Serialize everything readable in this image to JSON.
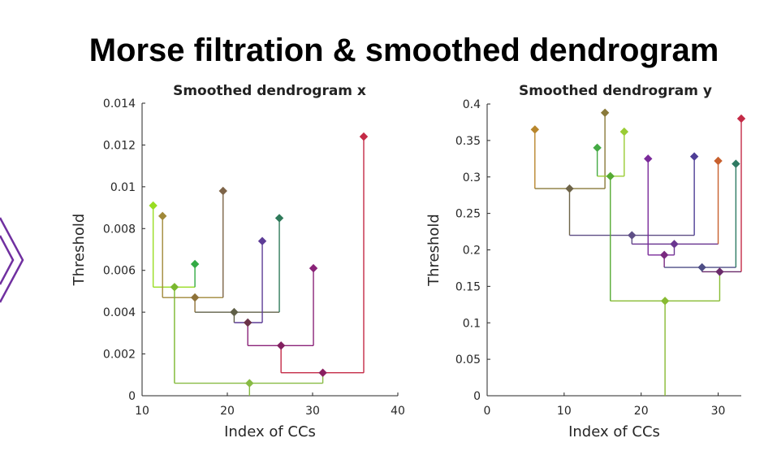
{
  "slide": {
    "title": "Morse filtration & smoothed dendrogram",
    "arrow_color": "#7030a0"
  },
  "chart_data": [
    {
      "type": "dendrogram",
      "title": "Smoothed dendrogram x",
      "xlabel": "Index of CCs",
      "ylabel": "Threshold",
      "xlim": [
        10,
        40
      ],
      "ylim": [
        0,
        0.014
      ],
      "xticks": [
        10,
        20,
        30,
        40
      ],
      "yticks": [
        0,
        0.002,
        0.004,
        0.006,
        0.008,
        0.01,
        0.012,
        0.014
      ],
      "ytick_labels": [
        "0",
        "0.002",
        "0.004",
        "0.006",
        "0.008",
        "0.01",
        "0.012",
        "0.014"
      ],
      "xtick_labels": [
        "10",
        "20",
        "30",
        "40"
      ],
      "merges": [
        {
          "x": 11.3,
          "y": 0.0091,
          "color": "#99dd22"
        },
        {
          "x": 12.4,
          "y": 0.0086,
          "color": "#a08838"
        },
        {
          "x": 16.2,
          "y": 0.0063,
          "color": "#33aa44"
        },
        {
          "x": 19.5,
          "y": 0.0098,
          "color": "#7d6448"
        },
        {
          "x": 24.1,
          "y": 0.0074,
          "color": "#5d3c96"
        },
        {
          "x": 26.1,
          "y": 0.0085,
          "color": "#2f7a5a"
        },
        {
          "x": 30.1,
          "y": 0.0061,
          "color": "#8a2278"
        },
        {
          "x": 36.0,
          "y": 0.0124,
          "color": "#c42a46"
        },
        {
          "x": 13.8,
          "y": 0.0052,
          "color": "#7ab82e",
          "children_x": [
            11.3,
            16.2
          ]
        },
        {
          "x": 16.2,
          "y": 0.0047,
          "color": "#8e7238",
          "children_x": [
            12.4,
            19.5
          ]
        },
        {
          "x": 20.8,
          "y": 0.004,
          "color": "#606048",
          "children_x": [
            16.2,
            26.1
          ]
        },
        {
          "x": 22.4,
          "y": 0.0035,
          "color": "#6a3248",
          "children_x": [
            20.8,
            24.1
          ]
        },
        {
          "x": 26.3,
          "y": 0.0024,
          "color": "#822060",
          "children_x": [
            22.4,
            30.1
          ]
        },
        {
          "x": 31.2,
          "y": 0.0011,
          "color": "#8a2060",
          "children_x": [
            26.3,
            36.0
          ]
        },
        {
          "x": 22.6,
          "y": 0.0006,
          "color": "#88bb44",
          "children_x": [
            13.8,
            31.2
          ]
        }
      ],
      "segments": [
        {
          "x1": 11.3,
          "y1": 0.0091,
          "x2": 11.3,
          "y2": 0.0052,
          "color": "#99dd22"
        },
        {
          "x1": 11.3,
          "y1": 0.0052,
          "x2": 16.2,
          "y2": 0.0052,
          "color": "#99dd22"
        },
        {
          "x1": 16.2,
          "y1": 0.0063,
          "x2": 16.2,
          "y2": 0.0052,
          "color": "#33aa44"
        },
        {
          "x1": 12.4,
          "y1": 0.0086,
          "x2": 12.4,
          "y2": 0.0047,
          "color": "#a08838"
        },
        {
          "x1": 12.4,
          "y1": 0.0047,
          "x2": 19.5,
          "y2": 0.0047,
          "color": "#a08838"
        },
        {
          "x1": 19.5,
          "y1": 0.0098,
          "x2": 19.5,
          "y2": 0.0047,
          "color": "#7d6448"
        },
        {
          "x1": 16.2,
          "y1": 0.0047,
          "x2": 16.2,
          "y2": 0.004,
          "color": "#8e7238"
        },
        {
          "x1": 16.2,
          "y1": 0.004,
          "x2": 26.1,
          "y2": 0.004,
          "color": "#606048"
        },
        {
          "x1": 26.1,
          "y1": 0.0085,
          "x2": 26.1,
          "y2": 0.004,
          "color": "#2f7a5a"
        },
        {
          "x1": 20.8,
          "y1": 0.004,
          "x2": 20.8,
          "y2": 0.0035,
          "color": "#606048"
        },
        {
          "x1": 20.8,
          "y1": 0.0035,
          "x2": 24.1,
          "y2": 0.0035,
          "color": "#5d3c96"
        },
        {
          "x1": 24.1,
          "y1": 0.0074,
          "x2": 24.1,
          "y2": 0.0035,
          "color": "#5d3c96"
        },
        {
          "x1": 22.4,
          "y1": 0.0035,
          "x2": 22.4,
          "y2": 0.0024,
          "color": "#8a2278"
        },
        {
          "x1": 22.4,
          "y1": 0.0024,
          "x2": 30.1,
          "y2": 0.0024,
          "color": "#8a2278"
        },
        {
          "x1": 30.1,
          "y1": 0.0061,
          "x2": 30.1,
          "y2": 0.0024,
          "color": "#8a2278"
        },
        {
          "x1": 26.3,
          "y1": 0.0024,
          "x2": 26.3,
          "y2": 0.0011,
          "color": "#c42a46"
        },
        {
          "x1": 26.3,
          "y1": 0.0011,
          "x2": 36.0,
          "y2": 0.0011,
          "color": "#c42a46"
        },
        {
          "x1": 36.0,
          "y1": 0.0124,
          "x2": 36.0,
          "y2": 0.0011,
          "color": "#c42a46"
        },
        {
          "x1": 13.8,
          "y1": 0.0052,
          "x2": 13.8,
          "y2": 0.0006,
          "color": "#7ab82e"
        },
        {
          "x1": 13.8,
          "y1": 0.0006,
          "x2": 31.2,
          "y2": 0.0006,
          "color": "#88bb44"
        },
        {
          "x1": 31.2,
          "y1": 0.0011,
          "x2": 31.2,
          "y2": 0.0006,
          "color": "#88bb44"
        },
        {
          "x1": 22.6,
          "y1": 0.0006,
          "x2": 22.6,
          "y2": 0.0,
          "color": "#88bb44"
        }
      ]
    },
    {
      "type": "dendrogram",
      "title": "Smoothed dendrogram y",
      "xlabel": "Index of CCs",
      "ylabel": "Threshold",
      "xlim": [
        0,
        33
      ],
      "ylim": [
        0,
        0.4
      ],
      "xticks": [
        0,
        10,
        20,
        30
      ],
      "yticks": [
        0,
        0.05,
        0.1,
        0.15,
        0.2,
        0.25,
        0.3,
        0.35,
        0.4
      ],
      "ytick_labels": [
        "0",
        "0.05",
        "0.1",
        "0.15",
        "0.2",
        "0.25",
        "0.3",
        "0.35",
        "0.4"
      ],
      "xtick_labels": [
        "0",
        "10",
        "20",
        "30"
      ],
      "merges": [
        {
          "x": 6.2,
          "y": 0.365,
          "color": "#b8862c"
        },
        {
          "x": 14.3,
          "y": 0.34,
          "color": "#44aa44"
        },
        {
          "x": 15.3,
          "y": 0.388,
          "color": "#8a7a3a"
        },
        {
          "x": 17.8,
          "y": 0.362,
          "color": "#99cc33"
        },
        {
          "x": 20.9,
          "y": 0.325,
          "color": "#7a2a9a"
        },
        {
          "x": 26.9,
          "y": 0.328,
          "color": "#4e3e96"
        },
        {
          "x": 30.0,
          "y": 0.322,
          "color": "#c8602e"
        },
        {
          "x": 32.3,
          "y": 0.318,
          "color": "#2e7a62"
        },
        {
          "x": 33.0,
          "y": 0.38,
          "color": "#c42a46"
        },
        {
          "x": 16.0,
          "y": 0.301,
          "color": "#55aa33",
          "children_x": [
            14.3,
            17.8
          ]
        },
        {
          "x": 10.7,
          "y": 0.284,
          "color": "#6e6448",
          "children_x": [
            6.2,
            15.3
          ]
        },
        {
          "x": 18.8,
          "y": 0.22,
          "color": "#5e4e86",
          "children_x": [
            10.7,
            26.9
          ]
        },
        {
          "x": 24.3,
          "y": 0.208,
          "color": "#6a3690",
          "children_x": [
            18.8,
            30.0
          ]
        },
        {
          "x": 23.0,
          "y": 0.193,
          "color": "#7a2a80",
          "children_x": [
            20.9,
            24.3
          ]
        },
        {
          "x": 27.9,
          "y": 0.176,
          "color": "#4e4e86",
          "children_x": [
            23.0,
            32.3
          ]
        },
        {
          "x": 30.2,
          "y": 0.17,
          "color": "#6a2a6a",
          "children_x": [
            27.9,
            33.0
          ]
        },
        {
          "x": 23.1,
          "y": 0.13,
          "color": "#88bb33",
          "children_x": [
            16.0,
            30.2
          ]
        }
      ],
      "segments": [
        {
          "x1": 6.2,
          "y1": 0.365,
          "x2": 6.2,
          "y2": 0.284,
          "color": "#b8862c"
        },
        {
          "x1": 6.2,
          "y1": 0.284,
          "x2": 15.3,
          "y2": 0.284,
          "color": "#8a7a3a"
        },
        {
          "x1": 15.3,
          "y1": 0.388,
          "x2": 15.3,
          "y2": 0.284,
          "color": "#8a7a3a"
        },
        {
          "x1": 14.3,
          "y1": 0.34,
          "x2": 14.3,
          "y2": 0.301,
          "color": "#44aa44"
        },
        {
          "x1": 14.3,
          "y1": 0.301,
          "x2": 17.8,
          "y2": 0.301,
          "color": "#99cc33"
        },
        {
          "x1": 17.8,
          "y1": 0.362,
          "x2": 17.8,
          "y2": 0.301,
          "color": "#99cc33"
        },
        {
          "x1": 10.7,
          "y1": 0.284,
          "x2": 10.7,
          "y2": 0.22,
          "color": "#6e6448"
        },
        {
          "x1": 10.7,
          "y1": 0.22,
          "x2": 26.9,
          "y2": 0.22,
          "color": "#5e4e86"
        },
        {
          "x1": 26.9,
          "y1": 0.328,
          "x2": 26.9,
          "y2": 0.22,
          "color": "#4e3e96"
        },
        {
          "x1": 18.8,
          "y1": 0.22,
          "x2": 18.8,
          "y2": 0.208,
          "color": "#5e4e86"
        },
        {
          "x1": 18.8,
          "y1": 0.208,
          "x2": 30.0,
          "y2": 0.208,
          "color": "#6a3690"
        },
        {
          "x1": 30.0,
          "y1": 0.322,
          "x2": 30.0,
          "y2": 0.208,
          "color": "#c8602e"
        },
        {
          "x1": 20.9,
          "y1": 0.325,
          "x2": 20.9,
          "y2": 0.193,
          "color": "#7a2a9a"
        },
        {
          "x1": 20.9,
          "y1": 0.193,
          "x2": 24.3,
          "y2": 0.193,
          "color": "#7a2a9a"
        },
        {
          "x1": 24.3,
          "y1": 0.208,
          "x2": 24.3,
          "y2": 0.193,
          "color": "#6a3690"
        },
        {
          "x1": 23.0,
          "y1": 0.193,
          "x2": 23.0,
          "y2": 0.176,
          "color": "#7a2a80"
        },
        {
          "x1": 23.0,
          "y1": 0.176,
          "x2": 32.3,
          "y2": 0.176,
          "color": "#4e4e86"
        },
        {
          "x1": 32.3,
          "y1": 0.318,
          "x2": 32.3,
          "y2": 0.176,
          "color": "#2e7a62"
        },
        {
          "x1": 27.9,
          "y1": 0.176,
          "x2": 27.9,
          "y2": 0.17,
          "color": "#4e4e86"
        },
        {
          "x1": 27.9,
          "y1": 0.17,
          "x2": 33.0,
          "y2": 0.17,
          "color": "#6a2a6a"
        },
        {
          "x1": 33.0,
          "y1": 0.38,
          "x2": 33.0,
          "y2": 0.17,
          "color": "#c42a46"
        },
        {
          "x1": 16.0,
          "y1": 0.301,
          "x2": 16.0,
          "y2": 0.13,
          "color": "#55aa33"
        },
        {
          "x1": 16.0,
          "y1": 0.13,
          "x2": 30.2,
          "y2": 0.13,
          "color": "#88bb33"
        },
        {
          "x1": 30.2,
          "y1": 0.17,
          "x2": 30.2,
          "y2": 0.13,
          "color": "#88bb33"
        },
        {
          "x1": 23.1,
          "y1": 0.13,
          "x2": 23.1,
          "y2": 0.0,
          "color": "#88bb33"
        }
      ]
    }
  ]
}
